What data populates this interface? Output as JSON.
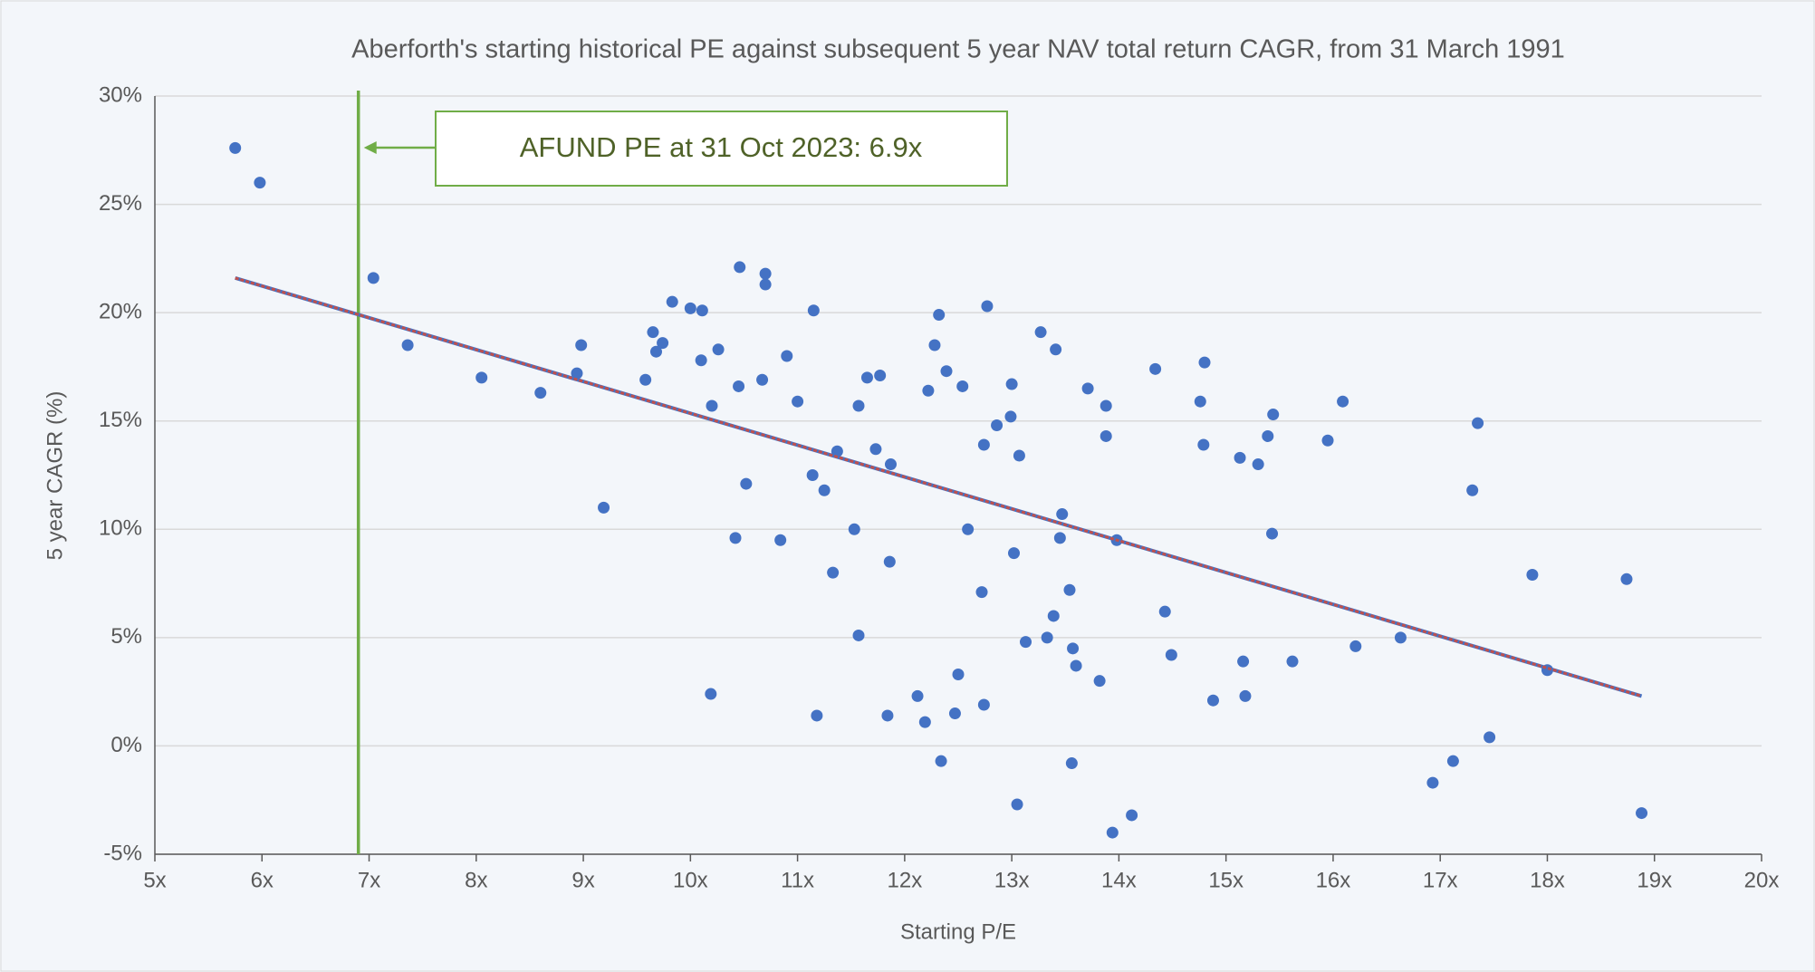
{
  "chart_data": {
    "type": "scatter",
    "title": "Aberforth's starting historical PE against subsequent 5 year NAV total return CAGR, from 31 March 1991",
    "x_label": "Starting P/E",
    "y_label": "5 year CAGR (%)",
    "annotation": "AFUND PE at 31 Oct 2023: 6.9x",
    "xlim": [
      5,
      20
    ],
    "ylim": [
      -5,
      30
    ],
    "xticks": [
      {
        "value": 5,
        "label": "5x"
      },
      {
        "value": 6,
        "label": "6x"
      },
      {
        "value": 7,
        "label": "7x"
      },
      {
        "value": 8,
        "label": "8x"
      },
      {
        "value": 9,
        "label": "9x"
      },
      {
        "value": 10,
        "label": "10x"
      },
      {
        "value": 11,
        "label": "11x"
      },
      {
        "value": 12,
        "label": "12x"
      },
      {
        "value": 13,
        "label": "13x"
      },
      {
        "value": 14,
        "label": "14x"
      },
      {
        "value": 15,
        "label": "15x"
      },
      {
        "value": 16,
        "label": "16x"
      },
      {
        "value": 17,
        "label": "17x"
      },
      {
        "value": 18,
        "label": "18x"
      },
      {
        "value": 19,
        "label": "19x"
      },
      {
        "value": 20,
        "label": "20x"
      }
    ],
    "yticks": [
      {
        "value": -5,
        "label": "-5%"
      },
      {
        "value": 0,
        "label": "0%"
      },
      {
        "value": 5,
        "label": "5%"
      },
      {
        "value": 10,
        "label": "10%"
      },
      {
        "value": 15,
        "label": "15%"
      },
      {
        "value": 20,
        "label": "20%"
      },
      {
        "value": 25,
        "label": "25%"
      },
      {
        "value": 30,
        "label": "30%"
      }
    ],
    "grid": true,
    "color": "#4472c4",
    "x": [
      5.75,
      5.98,
      7.04,
      7.36,
      8.05,
      8.6,
      8.98,
      8.94,
      9.19,
      9.58,
      9.65,
      9.68,
      9.74,
      9.83,
      10.0,
      10.11,
      10.1,
      10.2,
      10.26,
      10.19,
      10.46,
      10.45,
      10.52,
      10.42,
      10.7,
      10.7,
      10.67,
      10.84,
      10.9,
      11.0,
      11.15,
      11.14,
      11.25,
      11.18,
      11.37,
      11.33,
      11.53,
      11.57,
      11.57,
      11.65,
      11.73,
      11.77,
      11.84,
      11.87,
      11.86,
      12.12,
      12.19,
      12.22,
      12.32,
      12.28,
      12.34,
      12.39,
      12.47,
      12.5,
      12.54,
      12.59,
      12.74,
      12.72,
      12.74,
      12.77,
      12.86,
      13.0,
      12.99,
      13.02,
      13.07,
      13.05,
      13.13,
      13.27,
      13.33,
      13.39,
      13.41,
      13.47,
      13.45,
      13.54,
      13.57,
      13.56,
      13.6,
      13.71,
      13.82,
      13.88,
      13.88,
      13.98,
      13.94,
      14.12,
      14.34,
      14.43,
      14.49,
      14.8,
      14.76,
      14.79,
      14.88,
      15.13,
      15.16,
      15.18,
      15.3,
      15.39,
      15.44,
      15.43,
      15.62,
      15.95,
      16.09,
      16.21,
      16.63,
      16.93,
      17.12,
      17.3,
      17.35,
      17.46,
      17.86,
      18.0,
      18.74,
      18.88
    ],
    "values": [
      27.6,
      26.0,
      21.6,
      18.5,
      17.0,
      16.3,
      18.5,
      17.2,
      11.0,
      16.9,
      19.1,
      18.2,
      18.6,
      20.5,
      20.2,
      20.1,
      17.8,
      15.7,
      18.3,
      2.4,
      22.1,
      16.6,
      12.1,
      9.6,
      21.8,
      21.3,
      16.9,
      9.5,
      18.0,
      15.9,
      20.1,
      12.5,
      11.8,
      1.4,
      13.6,
      8.0,
      10.0,
      15.7,
      5.1,
      17.0,
      13.7,
      17.1,
      1.4,
      13.0,
      8.5,
      2.3,
      1.1,
      16.4,
      19.9,
      18.5,
      -0.7,
      17.3,
      1.5,
      3.3,
      16.6,
      10.0,
      13.9,
      7.1,
      1.9,
      20.3,
      14.8,
      16.7,
      15.2,
      8.9,
      13.4,
      -2.7,
      4.8,
      19.1,
      5.0,
      6.0,
      18.3,
      10.7,
      9.6,
      7.2,
      4.5,
      -0.8,
      3.7,
      16.5,
      3.0,
      15.7,
      14.3,
      9.5,
      -4.0,
      -3.2,
      17.4,
      6.2,
      4.2,
      17.7,
      15.9,
      13.9,
      2.1,
      13.3,
      3.9,
      2.3,
      13.0,
      14.3,
      15.3,
      9.8,
      3.9,
      14.1,
      15.9,
      4.6,
      5.0,
      -1.7,
      -0.7,
      11.8,
      14.9,
      0.4,
      7.9,
      3.5,
      7.7,
      -3.1
    ],
    "trendline": {
      "x": [
        5.75,
        18.88
      ],
      "values": [
        21.6,
        2.3
      ],
      "color": "#c0504d"
    },
    "reference_line": {
      "x": 6.9,
      "color": "#70ad47"
    }
  }
}
